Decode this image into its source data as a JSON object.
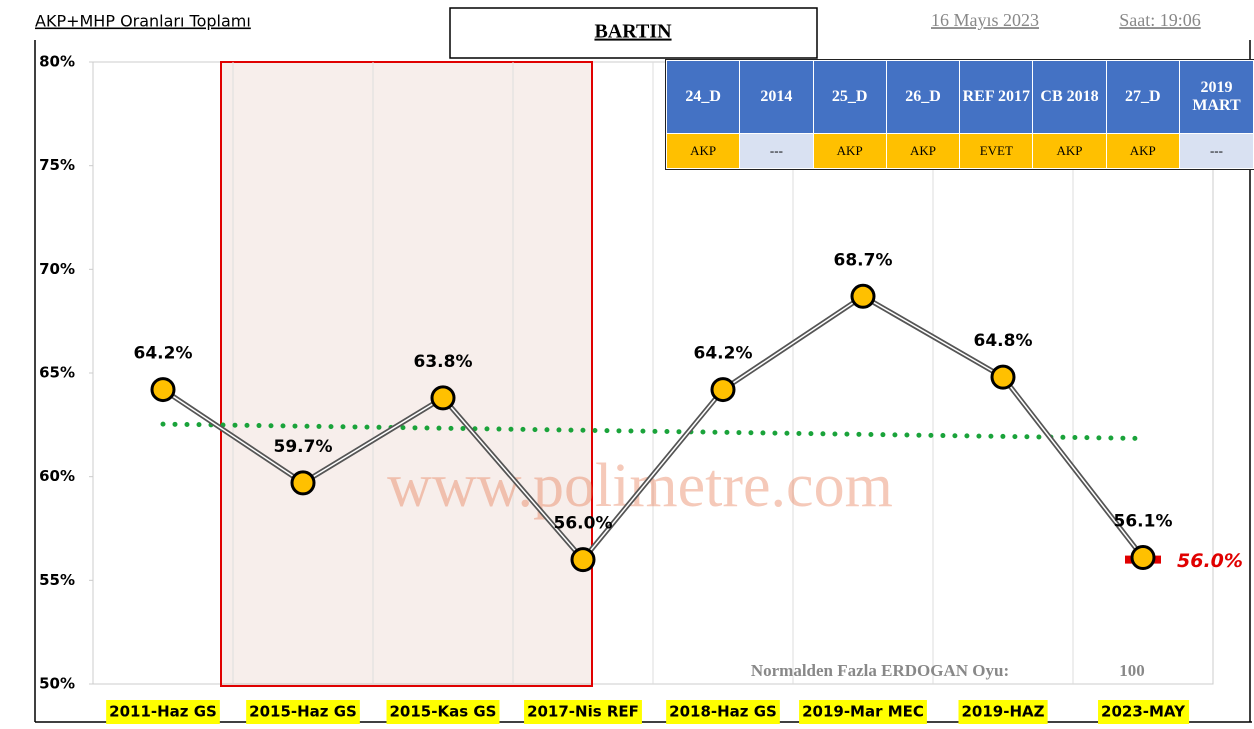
{
  "chart_data": {
    "type": "line",
    "title": "AKP+MHP Oranları Toplamı",
    "location": "BARTIN",
    "date": "16 Mayıs 2023",
    "time": "Saat: 19:06",
    "categories": [
      "2011-Haz GS",
      "2015-Haz GS",
      "2015-Kas GS",
      "2017-Nis REF",
      "2018-Haz GS",
      "2019-Mar MEC",
      "2019-HAZ",
      "2023-MAY"
    ],
    "values": [
      64.2,
      59.7,
      63.8,
      56.0,
      64.2,
      68.7,
      64.8,
      56.1
    ],
    "value_labels": [
      "64.2%",
      "59.7%",
      "63.8%",
      "56.0%",
      "64.2%",
      "68.7%",
      "64.8%",
      "56.1%"
    ],
    "color": "#ffc000",
    "line_color": "#555555",
    "trendline": true,
    "trendline_color": "#1aa33a",
    "ylim": [
      50,
      80
    ],
    "yticks": [
      {
        "value": 50,
        "label": "50%"
      },
      {
        "value": 55,
        "label": "55%"
      },
      {
        "value": 60,
        "label": "60%"
      },
      {
        "value": 65,
        "label": "65%"
      },
      {
        "value": 70,
        "label": "70%"
      },
      {
        "value": 75,
        "label": "75%"
      },
      {
        "value": 80,
        "label": "80%"
      }
    ],
    "grid": true,
    "marker": {
      "value": 56.0,
      "label": "56.0%",
      "color": "#e00000"
    },
    "watermark": "www.polimetre.com",
    "footer": {
      "label": "Normalden Fazla ERDOGAN Oyu:",
      "value": 100
    },
    "table": {
      "header": [
        "24_D",
        "2014",
        "25_D",
        "26_D",
        "REF 2017",
        "CB 2018",
        "27_D",
        "2019 MART"
      ],
      "row": [
        "AKP",
        "---",
        "AKP",
        "AKP",
        "EVET",
        "AKP",
        "AKP",
        "---"
      ],
      "row_colors": [
        "#ffc000",
        "#d9e1f2",
        "#ffc000",
        "#ffc000",
        "#ffc000",
        "#ffc000",
        "#ffc000",
        "#d9e1f2"
      ]
    }
  }
}
